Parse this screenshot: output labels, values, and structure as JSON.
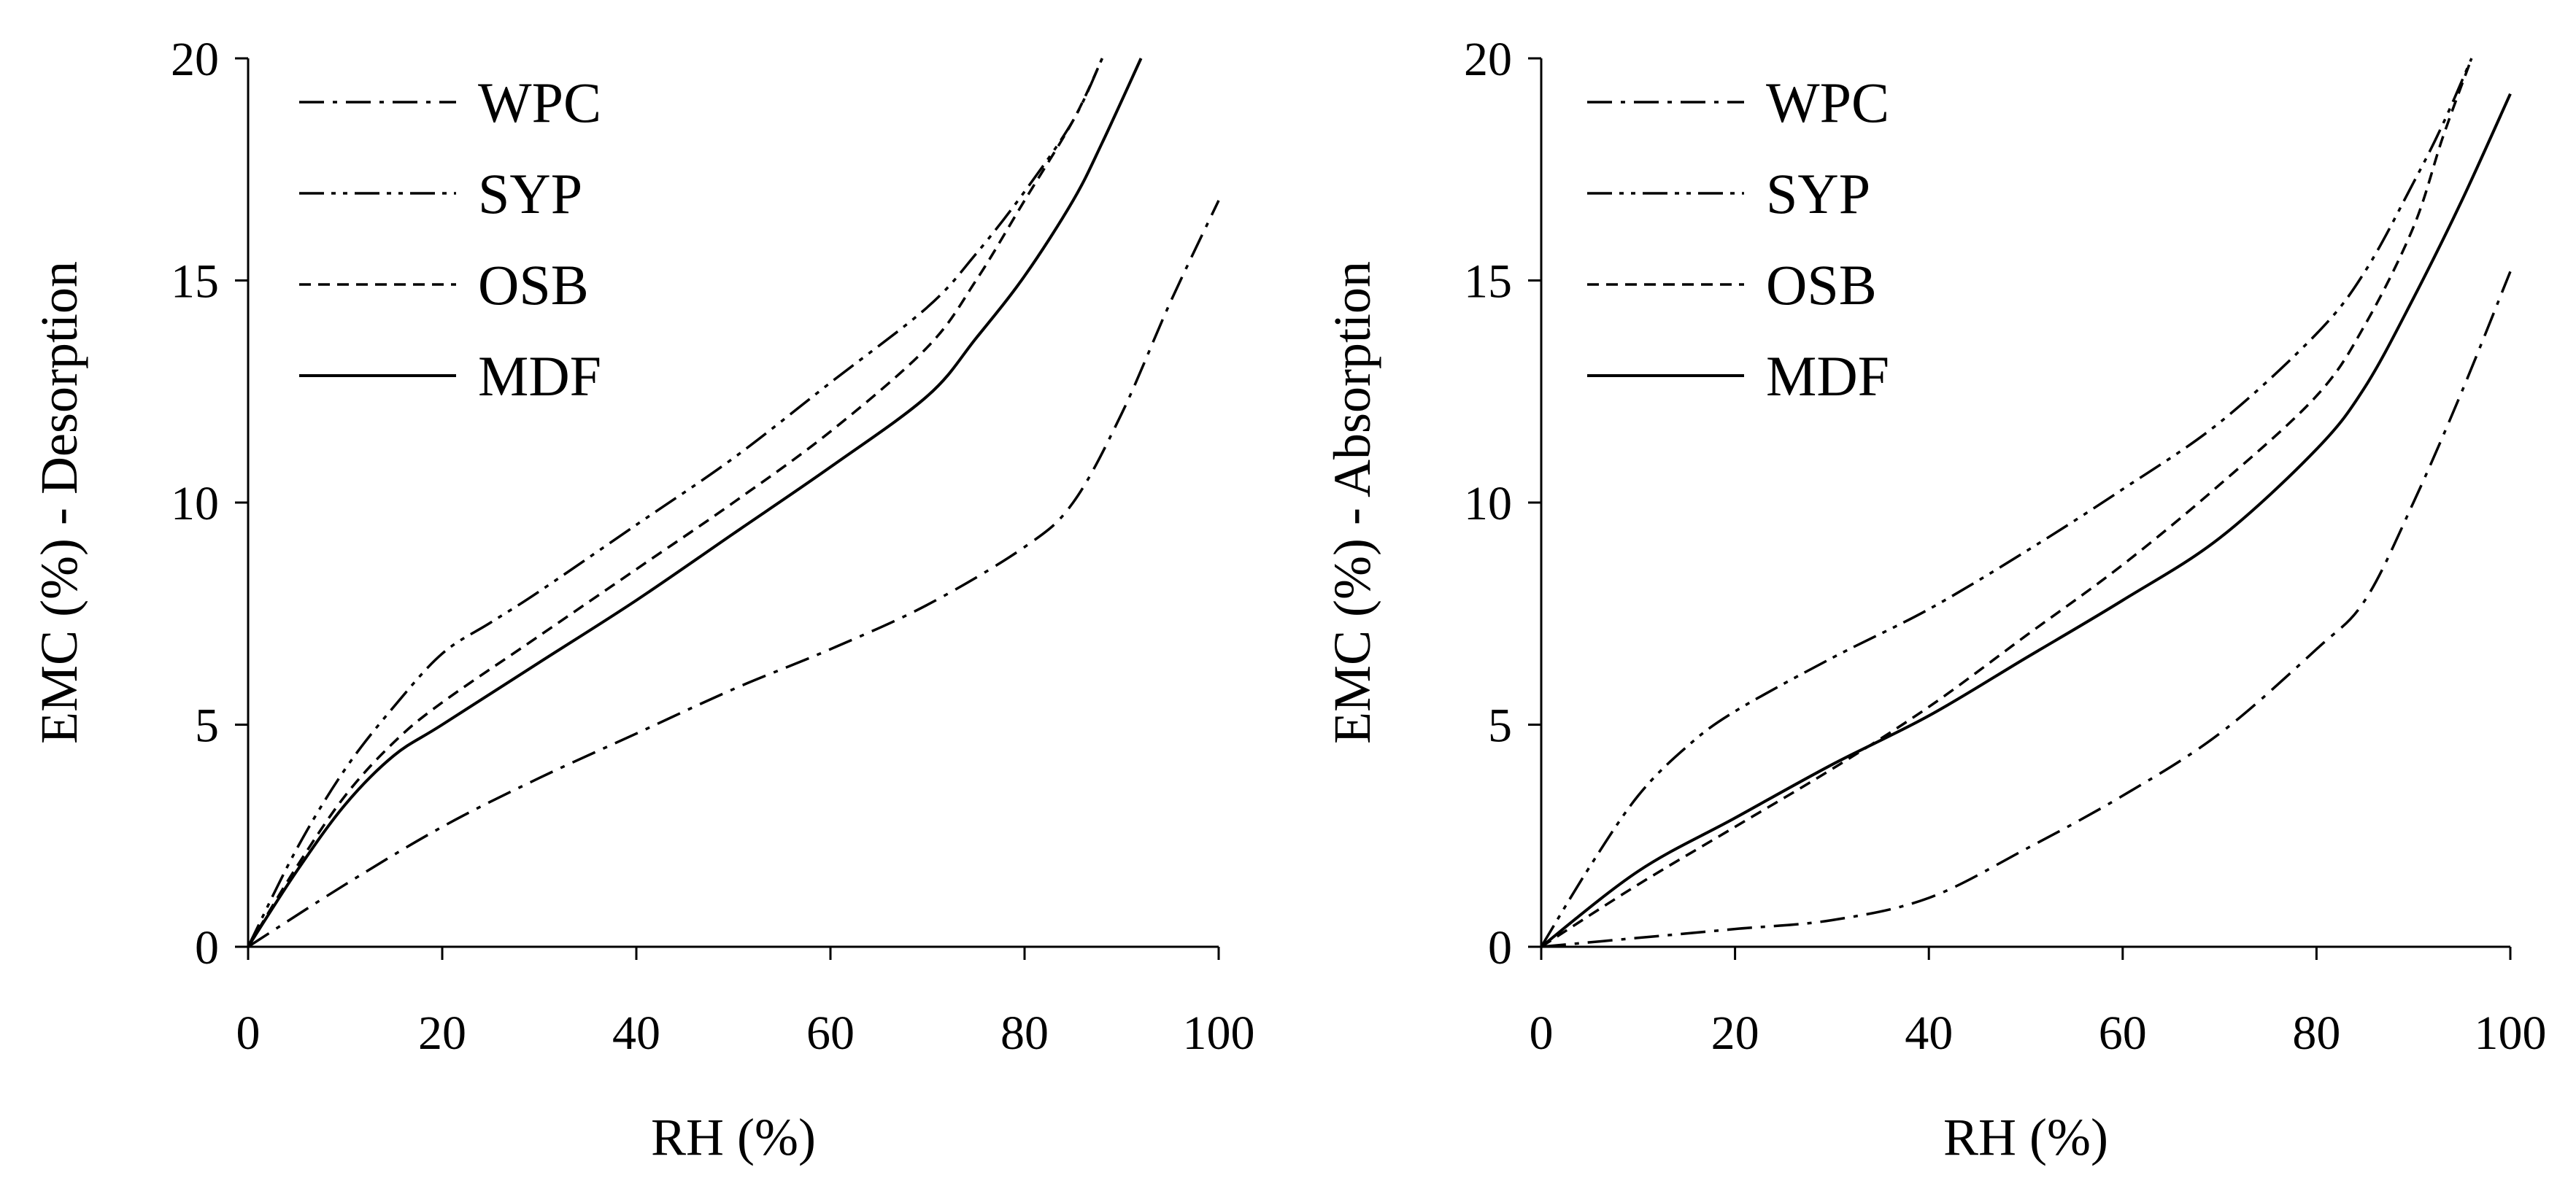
{
  "chart_data": [
    {
      "type": "line",
      "xlabel": "RH (%)",
      "ylabel": "EMC (%) - Desorption",
      "xlim": [
        0,
        100
      ],
      "ylim": [
        0,
        20
      ],
      "xticks": [
        0,
        20,
        40,
        60,
        80,
        100
      ],
      "yticks": [
        0,
        5,
        10,
        15,
        20
      ],
      "grid": false,
      "legend_position": "top-left",
      "series": [
        {
          "name": "WPC",
          "style": "dash-dot",
          "x": [
            0,
            10,
            20,
            30,
            40,
            50,
            60,
            70,
            80,
            85,
            90,
            95,
            100
          ],
          "y": [
            0,
            1.4,
            2.7,
            3.8,
            4.8,
            5.8,
            6.7,
            7.7,
            9.0,
            10.0,
            12.0,
            14.5,
            16.8
          ]
        },
        {
          "name": "SYP",
          "style": "dash-dot-dot",
          "x": [
            0,
            5,
            10,
            15,
            20,
            25,
            30,
            40,
            50,
            60,
            70,
            75,
            80,
            85,
            88
          ],
          "y": [
            0,
            2.2,
            4.0,
            5.4,
            6.6,
            7.3,
            8.0,
            9.5,
            11.0,
            12.7,
            14.4,
            15.6,
            17.0,
            18.6,
            20.0
          ]
        },
        {
          "name": "OSB",
          "style": "dashed",
          "x": [
            0,
            5,
            10,
            15,
            20,
            30,
            40,
            50,
            60,
            70,
            75,
            80,
            85,
            88
          ],
          "y": [
            0,
            1.8,
            3.4,
            4.6,
            5.5,
            7.0,
            8.5,
            10.0,
            11.6,
            13.5,
            15.0,
            16.8,
            18.6,
            20.0
          ]
        },
        {
          "name": "MDF",
          "style": "solid",
          "x": [
            0,
            5,
            10,
            15,
            20,
            30,
            40,
            50,
            60,
            70,
            75,
            80,
            85,
            88,
            92
          ],
          "y": [
            0,
            1.7,
            3.2,
            4.3,
            5.0,
            6.4,
            7.8,
            9.3,
            10.8,
            12.4,
            13.7,
            15.1,
            16.8,
            18.1,
            20.0
          ]
        }
      ]
    },
    {
      "type": "line",
      "xlabel": "RH (%)",
      "ylabel": "EMC (%) - Absorption",
      "xlim": [
        0,
        100
      ],
      "ylim": [
        0,
        20
      ],
      "xticks": [
        0,
        20,
        40,
        60,
        80,
        100
      ],
      "yticks": [
        0,
        5,
        10,
        15,
        20
      ],
      "grid": false,
      "legend_position": "top-left",
      "series": [
        {
          "name": "WPC",
          "style": "dash-dot",
          "x": [
            0,
            10,
            20,
            30,
            40,
            50,
            60,
            70,
            80,
            85,
            90,
            95,
            100
          ],
          "y": [
            0,
            0.2,
            0.4,
            0.6,
            1.1,
            2.2,
            3.4,
            4.8,
            6.7,
            7.8,
            10.0,
            12.5,
            15.2
          ]
        },
        {
          "name": "SYP",
          "style": "dash-dot-dot",
          "x": [
            0,
            5,
            10,
            15,
            20,
            30,
            40,
            50,
            60,
            70,
            80,
            85,
            90,
            93,
            96
          ],
          "y": [
            0,
            1.8,
            3.4,
            4.5,
            5.3,
            6.5,
            7.6,
            8.9,
            10.3,
            11.8,
            13.8,
            15.2,
            17.2,
            18.5,
            20.0
          ]
        },
        {
          "name": "OSB",
          "style": "dashed",
          "x": [
            0,
            10,
            20,
            30,
            40,
            50,
            60,
            70,
            80,
            85,
            90,
            93,
            96
          ],
          "y": [
            0,
            1.4,
            2.7,
            4.0,
            5.4,
            7.0,
            8.6,
            10.4,
            12.4,
            14.0,
            16.2,
            18.2,
            20.0
          ]
        },
        {
          "name": "MDF",
          "style": "solid",
          "x": [
            0,
            10,
            20,
            30,
            40,
            50,
            60,
            70,
            80,
            85,
            90,
            95,
            100
          ],
          "y": [
            0,
            1.7,
            2.9,
            4.1,
            5.2,
            6.5,
            7.8,
            9.2,
            11.2,
            12.6,
            14.6,
            16.8,
            19.2
          ]
        }
      ]
    }
  ]
}
